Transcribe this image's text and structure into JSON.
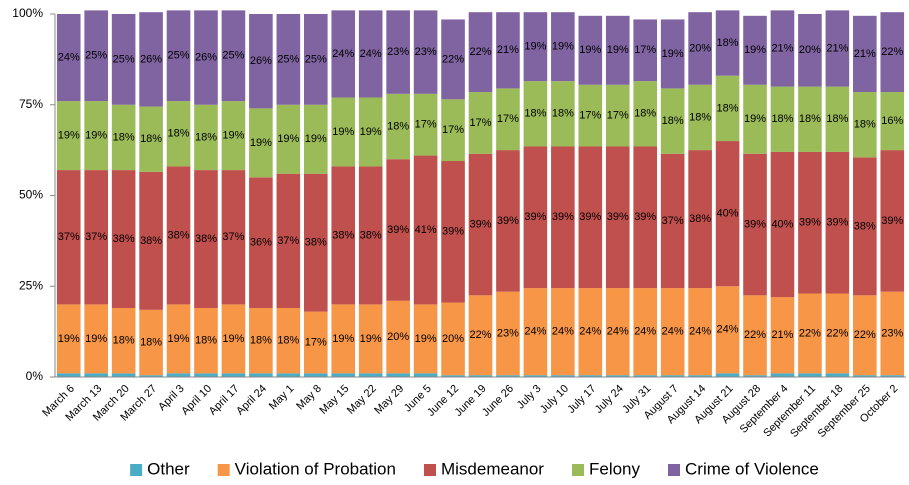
{
  "chart_data": {
    "type": "stacked_bar",
    "categories": [
      "March 6",
      "March 13",
      "March 20",
      "March 27",
      "April 3",
      "April 10",
      "April 17",
      "April 24",
      "May 1",
      "May 8",
      "May 15",
      "May 22",
      "May 29",
      "June 5",
      "June 12",
      "June 19",
      "June 26",
      "July 3",
      "July 10",
      "July 17",
      "July 24",
      "July 31",
      "August 7",
      "August 14",
      "August 21",
      "August 28",
      "September 4",
      "September 11",
      "September 18",
      "September 25",
      "October 2"
    ],
    "ylim": [
      0,
      100
    ],
    "yticks": [
      {
        "value": 0,
        "label": "0%"
      },
      {
        "value": 25,
        "label": "25%"
      },
      {
        "value": 50,
        "label": "50%"
      },
      {
        "value": 75,
        "label": "75%"
      },
      {
        "value": 100,
        "label": "100%"
      }
    ],
    "grid": false,
    "legend": "bottom",
    "series": [
      {
        "name": "Other",
        "color": "#4bacc6",
        "values": [
          1,
          1,
          1,
          0.5,
          1,
          1,
          1,
          1,
          1,
          1,
          1,
          1,
          1,
          1,
          0.5,
          0.5,
          0.5,
          0.5,
          0.5,
          0.5,
          0.5,
          0.5,
          0.5,
          0.5,
          1,
          0.5,
          1,
          1,
          1,
          0.5,
          0.5
        ]
      },
      {
        "name": "Violation of Probation",
        "color": "#f79646",
        "values": [
          19,
          19,
          18,
          18,
          19,
          18,
          19,
          18,
          18,
          17,
          19,
          19,
          20,
          19,
          20,
          22,
          23,
          24,
          24,
          24,
          24,
          24,
          24,
          24,
          24,
          22,
          21,
          22,
          22,
          22,
          23
        ],
        "value_labels": [
          "19%",
          "19%",
          "18%",
          "18%",
          "19%",
          "18%",
          "19%",
          "18%",
          "18%",
          "17%",
          "19%",
          "19%",
          "20%",
          "19%",
          "20%",
          "22%",
          "23%",
          "24%",
          "24%",
          "24%",
          "24%",
          "24%",
          "24%",
          "24%",
          "24%",
          "22%",
          "21%",
          "22%",
          "22%",
          "22%",
          "23%"
        ]
      },
      {
        "name": "Misdemeanor",
        "color": "#c0504d",
        "values": [
          37,
          37,
          38,
          38,
          38,
          38,
          37,
          36,
          37,
          38,
          38,
          38,
          39,
          41,
          39,
          39,
          39,
          39,
          39,
          39,
          39,
          39,
          37,
          38,
          40,
          39,
          40,
          39,
          39,
          38,
          39
        ],
        "value_labels": [
          "37%",
          "37%",
          "38%",
          "38%",
          "38%",
          "38%",
          "37%",
          "36%",
          "37%",
          "38%",
          "38%",
          "38%",
          "39%",
          "41%",
          "39%",
          "39%",
          "39%",
          "39%",
          "39%",
          "39%",
          "39%",
          "39%",
          "37%",
          "38%",
          "40%",
          "39%",
          "40%",
          "39%",
          "39%",
          "38%",
          "39%"
        ]
      },
      {
        "name": "Felony",
        "color": "#9bbb59",
        "values": [
          19,
          19,
          18,
          18,
          18,
          18,
          19,
          19,
          19,
          19,
          19,
          19,
          18,
          17,
          17,
          17,
          17,
          18,
          18,
          17,
          17,
          18,
          18,
          18,
          18,
          19,
          18,
          18,
          18,
          18,
          16
        ],
        "value_labels": [
          "19%",
          "19%",
          "18%",
          "18%",
          "18%",
          "18%",
          "19%",
          "19%",
          "19%",
          "19%",
          "19%",
          "19%",
          "18%",
          "17%",
          "17%",
          "17%",
          "17%",
          "18%",
          "18%",
          "17%",
          "17%",
          "18%",
          "18%",
          "18%",
          "18%",
          "19%",
          "18%",
          "18%",
          "18%",
          "18%",
          "16%"
        ]
      },
      {
        "name": "Crime of Violence",
        "color": "#8064a2",
        "values": [
          24,
          25,
          25,
          26,
          25,
          26,
          25,
          26,
          25,
          25,
          24,
          24,
          23,
          23,
          22,
          22,
          21,
          19,
          19,
          19,
          19,
          17,
          19,
          20,
          18,
          19,
          21,
          20,
          21,
          21,
          22
        ],
        "value_labels": [
          "24%",
          "25%",
          "25%",
          "26%",
          "25%",
          "26%",
          "25%",
          "26%",
          "25%",
          "25%",
          "24%",
          "24%",
          "23%",
          "23%",
          "22%",
          "22%",
          "21%",
          "19%",
          "19%",
          "19%",
          "19%",
          "17%",
          "19%",
          "20%",
          "18%",
          "19%",
          "21%",
          "20%",
          "21%",
          "21%",
          "22%"
        ]
      }
    ]
  }
}
